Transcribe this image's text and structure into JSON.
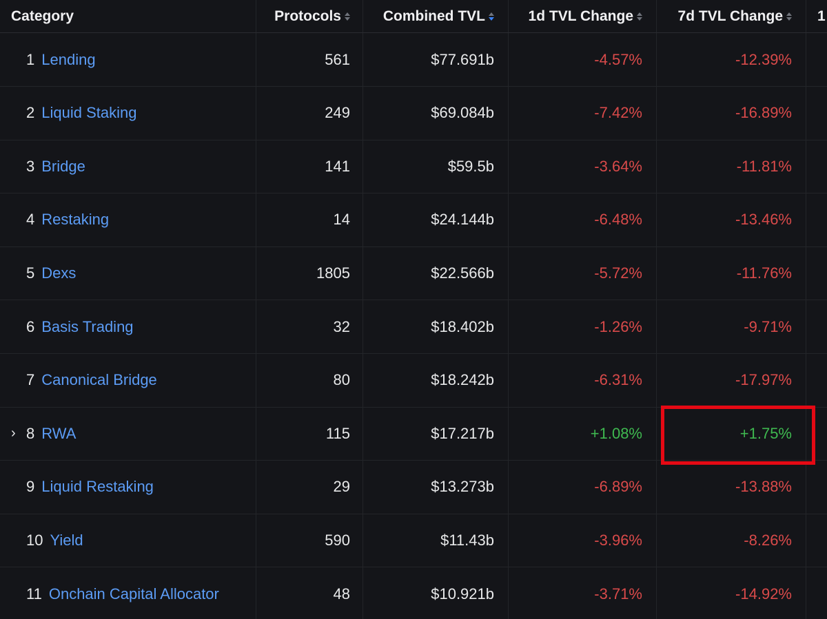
{
  "headers": {
    "category": "Category",
    "protocols": "Protocols",
    "combined_tvl": "Combined TVL",
    "change_1d": "1d TVL Change",
    "change_7d": "7d TVL Change",
    "extra": "1"
  },
  "rows": [
    {
      "rank": "1",
      "name": "Lending",
      "protocols": "561",
      "tvl": "$77.691b",
      "d1": "-4.57%",
      "d7": "-12.39%"
    },
    {
      "rank": "2",
      "name": "Liquid Staking",
      "protocols": "249",
      "tvl": "$69.084b",
      "d1": "-7.42%",
      "d7": "-16.89%"
    },
    {
      "rank": "3",
      "name": "Bridge",
      "protocols": "141",
      "tvl": "$59.5b",
      "d1": "-3.64%",
      "d7": "-11.81%"
    },
    {
      "rank": "4",
      "name": "Restaking",
      "protocols": "14",
      "tvl": "$24.144b",
      "d1": "-6.48%",
      "d7": "-13.46%"
    },
    {
      "rank": "5",
      "name": "Dexs",
      "protocols": "1805",
      "tvl": "$22.566b",
      "d1": "-5.72%",
      "d7": "-11.76%"
    },
    {
      "rank": "6",
      "name": "Basis Trading",
      "protocols": "32",
      "tvl": "$18.402b",
      "d1": "-1.26%",
      "d7": "-9.71%"
    },
    {
      "rank": "7",
      "name": "Canonical Bridge",
      "protocols": "80",
      "tvl": "$18.242b",
      "d1": "-6.31%",
      "d7": "-17.97%"
    },
    {
      "rank": "8",
      "name": "RWA",
      "protocols": "115",
      "tvl": "$17.217b",
      "d1": "+1.08%",
      "d7": "+1.75%",
      "expandable": true
    },
    {
      "rank": "9",
      "name": "Liquid Restaking",
      "protocols": "29",
      "tvl": "$13.273b",
      "d1": "-6.89%",
      "d7": "-13.88%"
    },
    {
      "rank": "10",
      "name": "Yield",
      "protocols": "590",
      "tvl": "$11.43b",
      "d1": "-3.96%",
      "d7": "-8.26%"
    },
    {
      "rank": "11",
      "name": "Onchain Capital Allocator",
      "protocols": "48",
      "tvl": "$10.921b",
      "d1": "-3.71%",
      "d7": "-14.92%"
    }
  ],
  "colors": {
    "background": "#141519",
    "link": "#5c9cf5",
    "negative": "#d94a4a",
    "positive": "#3fb950",
    "highlight": "#e50914"
  }
}
